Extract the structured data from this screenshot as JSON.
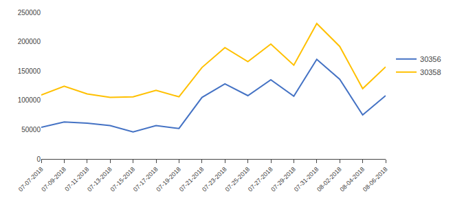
{
  "chart_data": {
    "type": "line",
    "categories": [
      "07-07-2018",
      "07-09-2018",
      "07-11-2018",
      "07-13-2018",
      "07-15-2018",
      "07-17-2018",
      "07-19-2018",
      "07-21-2018",
      "07-23-2018",
      "07-25-2018",
      "07-27-2018",
      "07-29-2018",
      "07-31-2018",
      "08-02-2018",
      "08-04-2018",
      "08-06-2018"
    ],
    "series": [
      {
        "name": "30356",
        "color": "#4472C4",
        "values": [
          54000,
          63000,
          61000,
          57000,
          46000,
          57000,
          52000,
          105000,
          128000,
          108000,
          135000,
          107000,
          170000,
          136000,
          75000,
          108000
        ]
      },
      {
        "name": "30358",
        "color": "#FFC000",
        "values": [
          109000,
          124000,
          111000,
          105000,
          106000,
          117000,
          106000,
          156000,
          190000,
          166000,
          196000,
          160000,
          231000,
          192000,
          120000,
          157000
        ]
      }
    ],
    "ylim": [
      0,
      250000
    ],
    "yticks": [
      0,
      50000,
      100000,
      150000,
      200000,
      250000
    ],
    "grid": false,
    "legend": "right"
  }
}
